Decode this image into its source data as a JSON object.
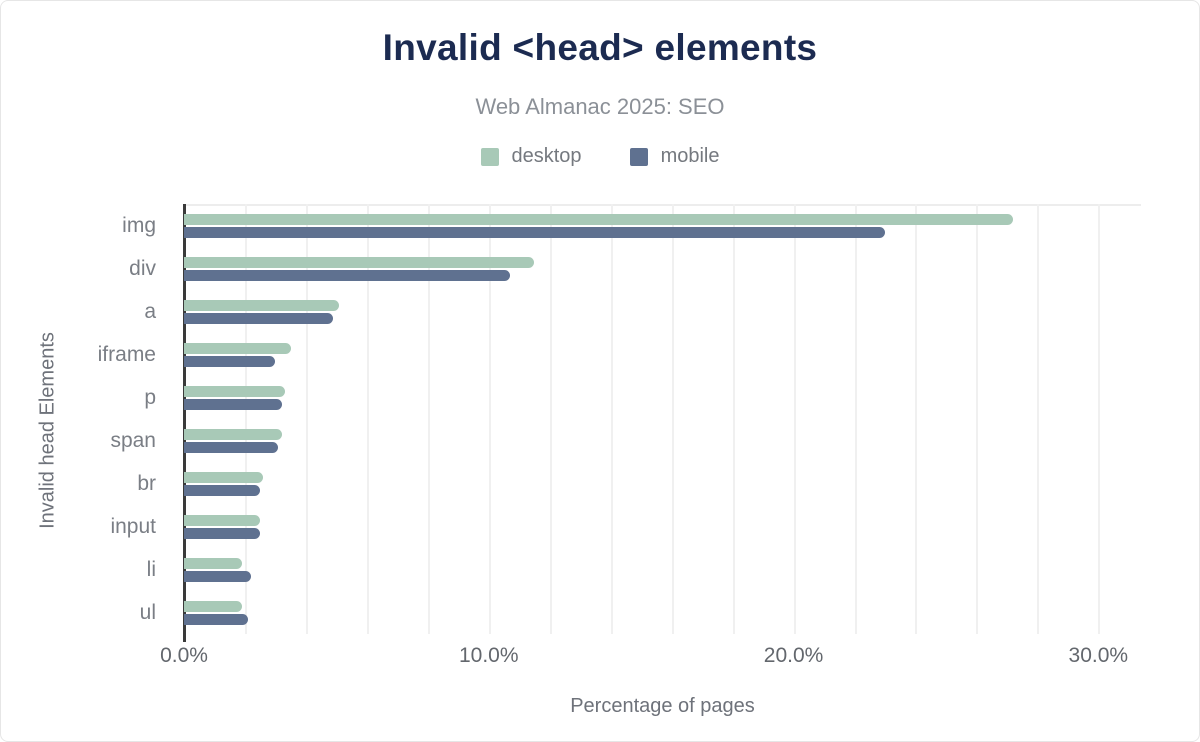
{
  "chart_data": {
    "type": "bar",
    "orientation": "horizontal",
    "title": "Invalid <head> elements",
    "subtitle": "Web Almanac 2025: SEO",
    "xlabel": "Percentage of pages",
    "ylabel": "Invalid head Elements",
    "legend_position": "top",
    "grid": true,
    "categories": [
      "img",
      "div",
      "a",
      "iframe",
      "p",
      "span",
      "br",
      "input",
      "li",
      "ul"
    ],
    "series": [
      {
        "name": "desktop",
        "color": "#a8c9b7",
        "values": [
          27.2,
          11.5,
          5.1,
          3.5,
          3.3,
          3.2,
          2.6,
          2.5,
          1.9,
          1.9
        ]
      },
      {
        "name": "mobile",
        "color": "#5f7190",
        "values": [
          23.0,
          10.7,
          4.9,
          3.0,
          3.2,
          3.1,
          2.5,
          2.5,
          2.2,
          2.1
        ]
      }
    ],
    "x_axis": {
      "min": 0,
      "max": 31.4,
      "grid_step": 2,
      "grid_end": 30,
      "ticks": [
        {
          "value": 0,
          "label": "0.0%"
        },
        {
          "value": 10,
          "label": "10.0%"
        },
        {
          "value": 20,
          "label": "20.0%"
        },
        {
          "value": 30,
          "label": "30.0%"
        }
      ]
    }
  }
}
